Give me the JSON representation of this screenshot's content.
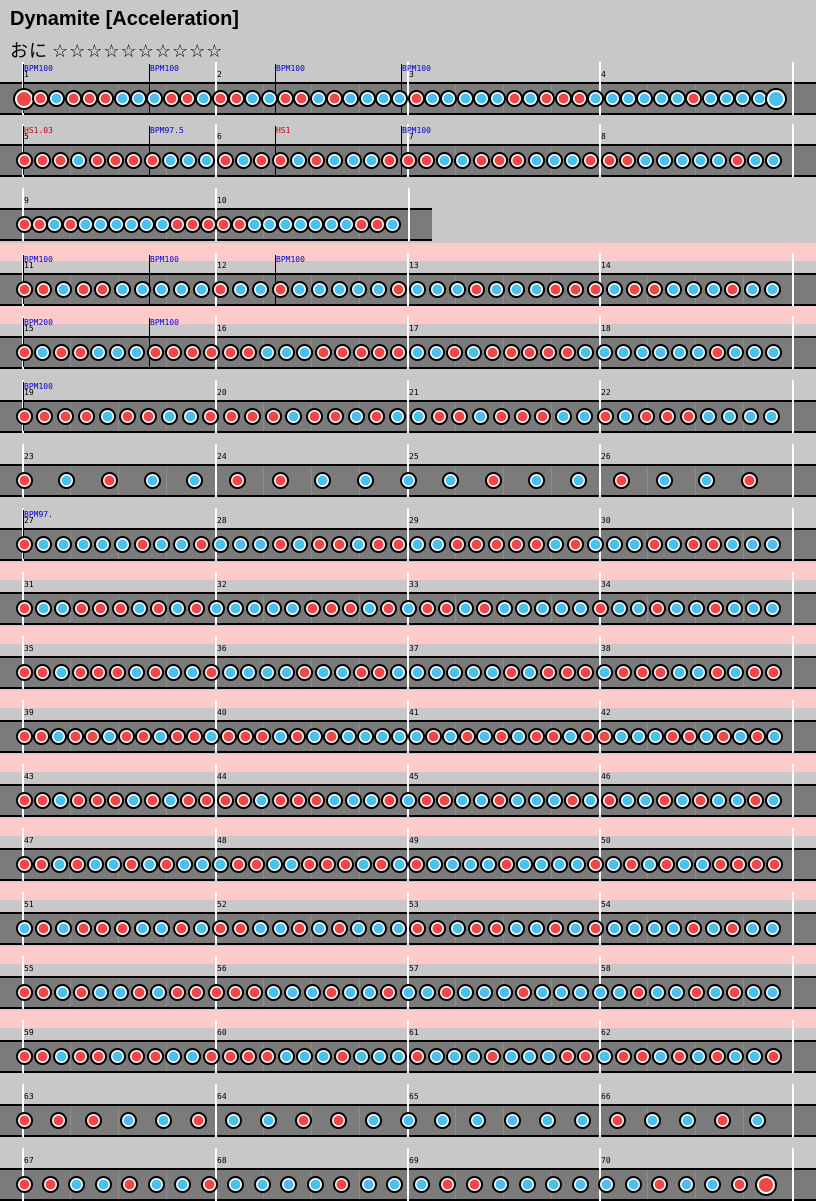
{
  "song": {
    "title": "Dynamite [Acceleration]",
    "difficulty_icon": "おに",
    "stars": "☆☆☆☆☆☆☆☆☆☆"
  },
  "colors": {
    "don": "#f04848",
    "ka": "#48c0f0",
    "lane": "#7b7b7b",
    "highlight": "#ffcaca",
    "bpm": "#0000cc",
    "hs": "#cc0000"
  },
  "rows": [
    {
      "measures": [
        1,
        2,
        3,
        4
      ],
      "hl": false,
      "cmds": [
        {
          "t": "BPM100",
          "k": "bpm"
        },
        {
          "t": "BPM100",
          "k": "bpm"
        },
        {
          "t": "BPM100",
          "k": "bpm"
        },
        {
          "t": "BPM100",
          "k": "bpm"
        }
      ],
      "notes": "BdkdddkkkddkddkkddkdkkkkdkkkkkdkdddkkkkkkdkkkkK"
    },
    {
      "measures": [
        5,
        6,
        7,
        8
      ],
      "hl": false,
      "cmds": [
        {
          "t": "HS1.03",
          "k": "hs"
        },
        {
          "t": "BPM97.5",
          "k": "bpm"
        },
        {
          "t": "HS1",
          "k": "hs"
        },
        {
          "t": "BPM100",
          "k": "bpm"
        }
      ],
      "notes": "dddkddddkkkdkddkdkkkdddkkdddkkkdddkkkkkdkk"
    },
    {
      "measures": [
        9,
        10
      ],
      "hl": false,
      "cmds": [],
      "notes": "ddkdkkkkkkdddddkkkkkkkddk"
    },
    {
      "measures": [
        11,
        12,
        13,
        14
      ],
      "hl": true,
      "cmds": [
        {
          "t": "BPM100",
          "k": "bpm"
        },
        {
          "t": "BPM100",
          "k": "bpm"
        },
        {
          "t": "BPM100",
          "k": "bpm"
        }
      ],
      "notes": "ddkddkkkkkdkkdkkkkkdkkkdkkkdddkddkkkdkk"
    },
    {
      "measures": [
        15,
        16,
        17,
        18
      ],
      "hl": true,
      "cmds": [
        {
          "t": "BPM200",
          "k": "bpm"
        },
        {
          "t": "BPM100",
          "k": "bpm"
        }
      ],
      "notes": "dkddkkkddddddkkkdddddkkdkdddddkkkkkkkdkkk"
    },
    {
      "measures": [
        19,
        20,
        21,
        22
      ],
      "hl": false,
      "cmds": [
        {
          "t": "BPM100",
          "k": "bpm"
        }
      ],
      "notes": "ddddkddkkddddkddkdkkddkdddkkdkdddkkkk"
    },
    {
      "measures": [
        23,
        24,
        25,
        26
      ],
      "hl": false,
      "cmds": [],
      "notes": "dkdkkddkkkkdkkdkkd"
    },
    {
      "measures": [
        27,
        28,
        29,
        30
      ],
      "hl": false,
      "cmds": [
        {
          "t": "BPM97.",
          "k": "bpm"
        }
      ],
      "notes": "dkkkkkdkkdkkkdkddkddkkdddddkdkkkdkddkkk"
    }
  ]
}
